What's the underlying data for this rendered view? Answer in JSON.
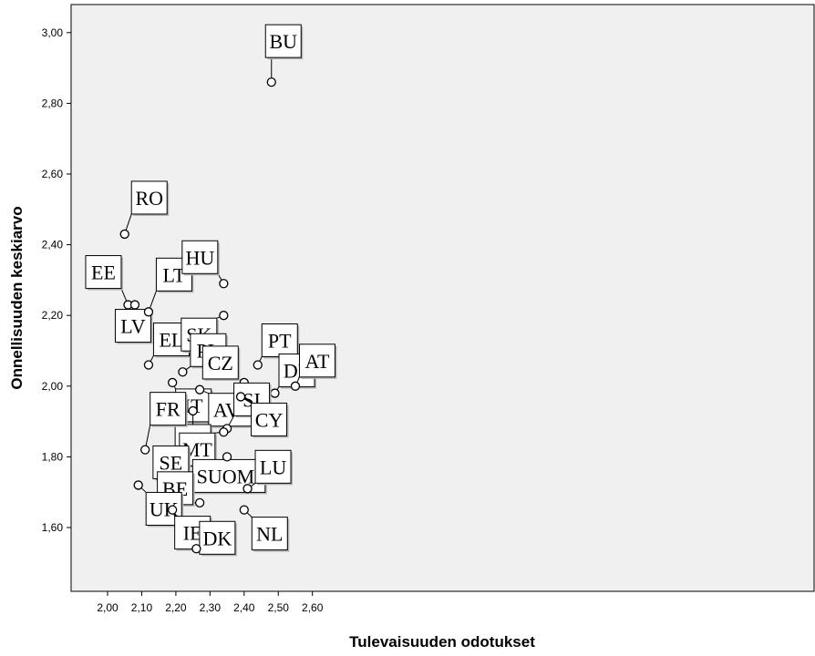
{
  "chart_data": {
    "type": "scatter",
    "title": "",
    "xlabel": "Tulevaisuuden odotukset",
    "ylabel": "Onnellisuuden keskiarvo",
    "xlim": [
      1.98,
      2.62
    ],
    "ylim": [
      1.48,
      3.08
    ],
    "x_ticks": [
      "2,00",
      "2,10",
      "2,20",
      "2,30",
      "2,40",
      "2,50",
      "2,60"
    ],
    "y_ticks": [
      "1,60",
      "1,80",
      "2,00",
      "2,20",
      "2,40",
      "2,60",
      "2,80",
      "3,00"
    ],
    "grid": false,
    "plot_background": "#f0f0f0",
    "points": [
      {
        "label": "BU",
        "x": 2.48,
        "y": 2.86
      },
      {
        "label": "RO",
        "x": 2.05,
        "y": 2.43
      },
      {
        "label": "EE",
        "x": 2.06,
        "y": 2.23
      },
      {
        "label": "LV",
        "x": 2.08,
        "y": 2.23
      },
      {
        "label": "LT",
        "x": 2.12,
        "y": 2.21
      },
      {
        "label": "EL",
        "x": 2.12,
        "y": 2.06
      },
      {
        "label": "HU",
        "x": 2.34,
        "y": 2.29
      },
      {
        "label": "SK",
        "x": 2.34,
        "y": 2.2
      },
      {
        "label": "PL",
        "x": 2.22,
        "y": 2.04
      },
      {
        "label": "PT",
        "x": 2.44,
        "y": 2.06
      },
      {
        "label": "CZ",
        "x": 2.4,
        "y": 2.01
      },
      {
        "label": "DE",
        "x": 2.49,
        "y": 1.98
      },
      {
        "label": "AT",
        "x": 2.55,
        "y": 2.0
      },
      {
        "label": "IT",
        "x": 2.19,
        "y": 2.01
      },
      {
        "label": "AVE",
        "x": 2.27,
        "y": 1.99
      },
      {
        "label": "ES",
        "x": 2.25,
        "y": 1.93
      },
      {
        "label": "FR",
        "x": 2.11,
        "y": 1.82
      },
      {
        "label": "SI",
        "x": 2.35,
        "y": 1.88
      },
      {
        "label": "MT",
        "x": 2.34,
        "y": 1.87
      },
      {
        "label": "CY",
        "x": 2.39,
        "y": 1.97
      },
      {
        "label": "SUOMI",
        "x": 2.35,
        "y": 1.8
      },
      {
        "label": "LU",
        "x": 2.41,
        "y": 1.71
      },
      {
        "label": "SE",
        "x": 2.22,
        "y": 1.72
      },
      {
        "label": "BE",
        "x": 2.27,
        "y": 1.67
      },
      {
        "label": "UK",
        "x": 2.09,
        "y": 1.72
      },
      {
        "label": "IE",
        "x": 2.19,
        "y": 1.65
      },
      {
        "label": "DK",
        "x": 2.26,
        "y": 1.54
      },
      {
        "label": "NL",
        "x": 2.4,
        "y": 1.65
      }
    ]
  }
}
